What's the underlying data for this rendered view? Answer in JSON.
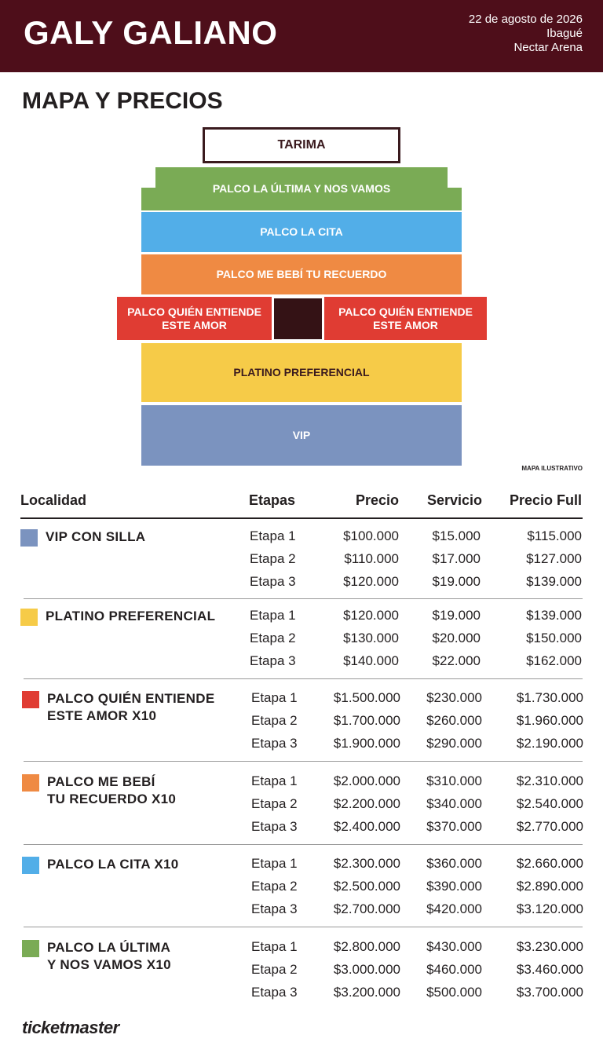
{
  "header": {
    "artist": "GALY GALIANO",
    "date": "22 de agosto de 2026",
    "city": "Ibagué",
    "venue": "Nectar Arena"
  },
  "section_title": "MAPA Y PRECIOS",
  "map": {
    "stage": "TARIMA",
    "green": "PALCO LA ÚLTIMA Y NOS VAMOS",
    "blue": "PALCO LA CITA",
    "orange": "PALCO ME BEBÍ TU RECUERDO",
    "red_left": "PALCO QUIÉN ENTIENDE ESTE AMOR",
    "red_right": "PALCO QUIÉN ENTIENDE ESTE AMOR",
    "yellow": "PLATINO PREFERENCIAL",
    "vip": "VIP",
    "note": "MAPA ILUSTRATIVO"
  },
  "colors": {
    "header_bg": "#4e0e1a",
    "green": "#7aab55",
    "blue": "#52aee8",
    "orange": "#ef8a43",
    "red": "#e03c33",
    "yellow": "#f6cb48",
    "vip": "#7b93bf",
    "center": "#341215"
  },
  "table": {
    "headers": [
      "Localidad",
      "Etapas",
      "Precio",
      "Servicio",
      "Precio Full"
    ],
    "groups": [
      {
        "name": "VIP CON SILLA",
        "color": "#7b93bf",
        "rows": [
          [
            "Etapa 1",
            "$100.000",
            "$15.000",
            "$115.000"
          ],
          [
            "Etapa 2",
            "$110.000",
            "$17.000",
            "$127.000"
          ],
          [
            "Etapa 3",
            "$120.000",
            "$19.000",
            "$139.000"
          ]
        ]
      },
      {
        "name": "PLATINO PREFERENCIAL",
        "color": "#f6cb48",
        "rows": [
          [
            "Etapa 1",
            "$120.000",
            "$19.000",
            "$139.000"
          ],
          [
            "Etapa 2",
            "$130.000",
            "$20.000",
            "$150.000"
          ],
          [
            "Etapa 3",
            "$140.000",
            "$22.000",
            "$162.000"
          ]
        ]
      },
      {
        "name": "PALCO QUIÉN ENTIENDE\nESTE AMOR X10",
        "color": "#e03c33",
        "rows": [
          [
            "Etapa 1",
            "$1.500.000",
            "$230.000",
            "$1.730.000"
          ],
          [
            "Etapa 2",
            "$1.700.000",
            "$260.000",
            "$1.960.000"
          ],
          [
            "Etapa 3",
            "$1.900.000",
            "$290.000",
            "$2.190.000"
          ]
        ]
      },
      {
        "name": "PALCO ME BEBÍ\nTU RECUERDO X10",
        "color": "#ef8a43",
        "rows": [
          [
            "Etapa 1",
            "$2.000.000",
            "$310.000",
            "$2.310.000"
          ],
          [
            "Etapa 2",
            "$2.200.000",
            "$340.000",
            "$2.540.000"
          ],
          [
            "Etapa 3",
            "$2.400.000",
            "$370.000",
            "$2.770.000"
          ]
        ]
      },
      {
        "name": "PALCO LA CITA X10",
        "color": "#52aee8",
        "rows": [
          [
            "Etapa 1",
            "$2.300.000",
            "$360.000",
            "$2.660.000"
          ],
          [
            "Etapa 2",
            "$2.500.000",
            "$390.000",
            "$2.890.000"
          ],
          [
            "Etapa 3",
            "$2.700.000",
            "$420.000",
            "$3.120.000"
          ]
        ]
      },
      {
        "name": "PALCO LA ÚLTIMA\nY NOS VAMOS X10",
        "color": "#7aab55",
        "rows": [
          [
            "Etapa 1",
            "$2.800.000",
            "$430.000",
            "$3.230.000"
          ],
          [
            "Etapa 2",
            "$3.000.000",
            "$460.000",
            "$3.460.000"
          ],
          [
            "Etapa 3",
            "$3.200.000",
            "$500.000",
            "$3.700.000"
          ]
        ]
      }
    ]
  },
  "brand": "ticketmaster"
}
